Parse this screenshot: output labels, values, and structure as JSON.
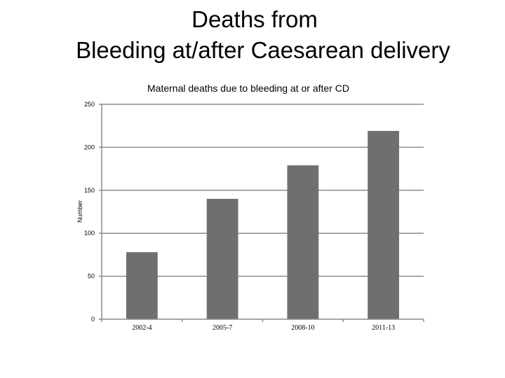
{
  "slide": {
    "title_line1": "Deaths from",
    "title_line2": "Bleeding at/after Caesarean delivery"
  },
  "chart_data": {
    "type": "bar",
    "title": "Maternal deaths due to bleeding at or after CD",
    "ylabel": "Number",
    "xlabel": "",
    "categories": [
      "2002-4",
      "2005-7",
      "2008-10",
      "2011-13"
    ],
    "values": [
      78,
      140,
      179,
      219
    ],
    "ylim": [
      0,
      250
    ],
    "yticks": [
      0,
      50,
      100,
      150,
      200,
      250
    ],
    "grid": true,
    "legend": "none",
    "bar_color": "#6f6f72",
    "grid_color": "#8c8c8c"
  }
}
